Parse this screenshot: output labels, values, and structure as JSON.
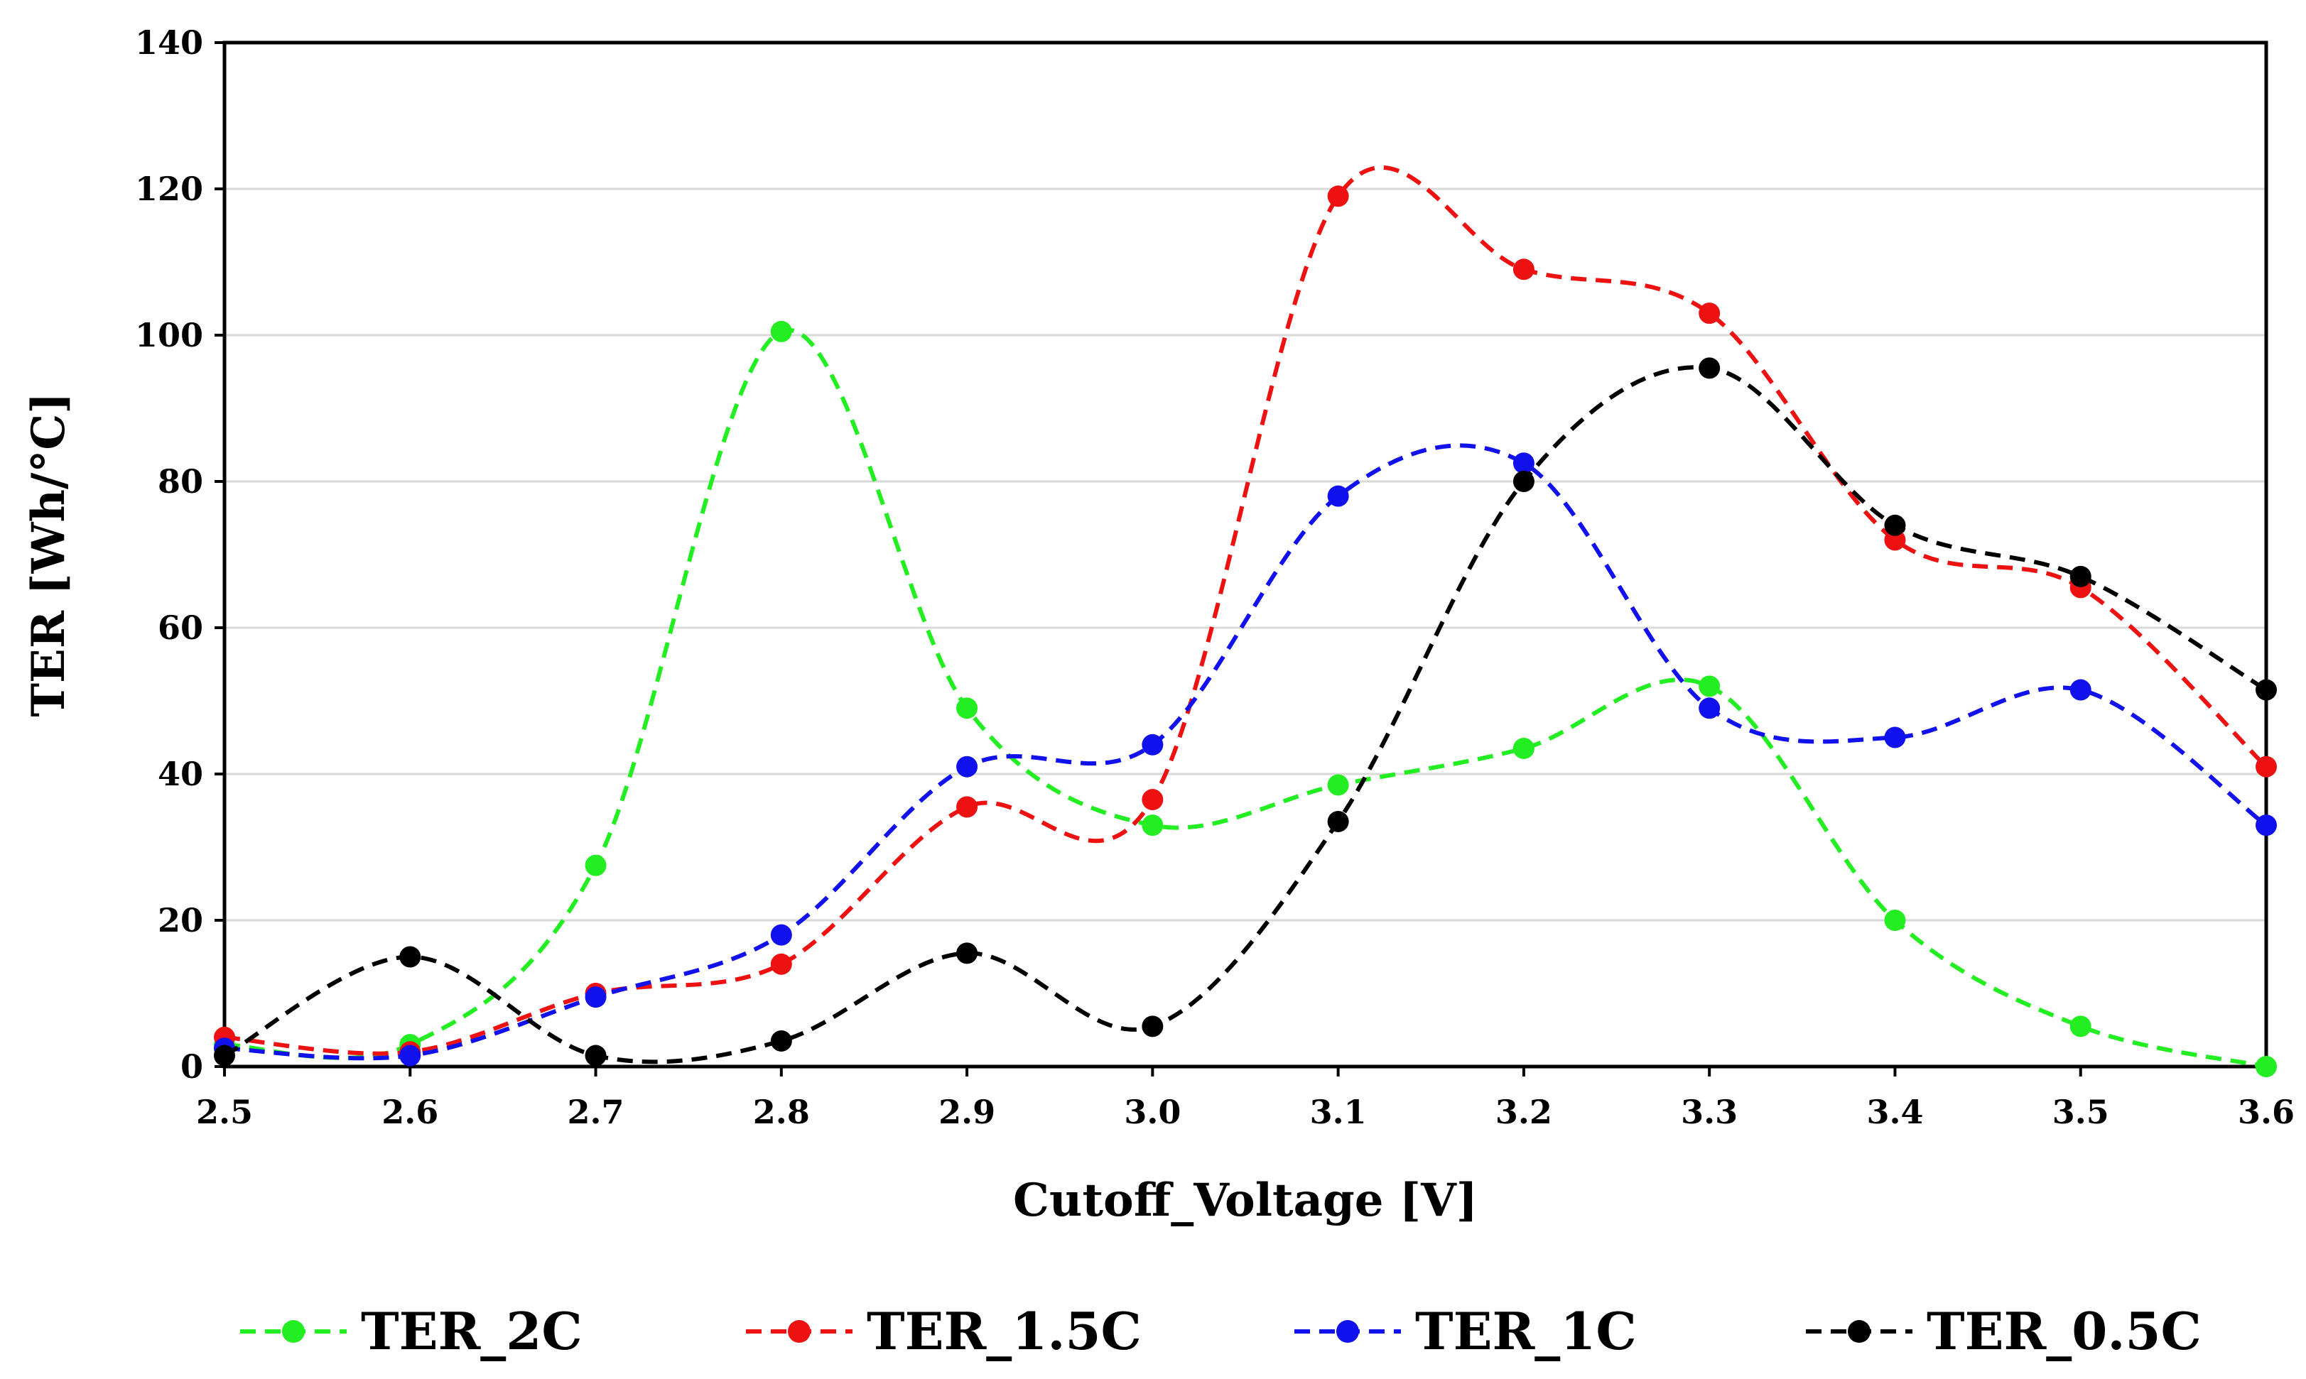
{
  "chart_data": {
    "type": "line",
    "title": "",
    "xlabel": "Cutoff_Voltage [V]",
    "ylabel": "TER [Wh/°C]",
    "xlim": [
      2.5,
      3.6
    ],
    "ylim": [
      0,
      140
    ],
    "x_ticks": [
      "2.5",
      "2.6",
      "2.7",
      "2.8",
      "2.9",
      "3.0",
      "3.1",
      "3.2",
      "3.3",
      "3.4",
      "3.5",
      "3.6"
    ],
    "y_ticks": [
      "0",
      "20",
      "40",
      "60",
      "80",
      "100",
      "120",
      "140"
    ],
    "grid": "horizontal",
    "legend_position": "bottom",
    "x": [
      2.5,
      2.6,
      2.7,
      2.8,
      2.9,
      3.0,
      3.1,
      3.2,
      3.3,
      3.4,
      3.5,
      3.6
    ],
    "series": [
      {
        "name": "TER_2C",
        "color": "#22ee22",
        "values": [
          3,
          3,
          27.5,
          100.5,
          49,
          33,
          38.5,
          43.5,
          52,
          20,
          5.5,
          0
        ]
      },
      {
        "name": "TER_1.5C",
        "color": "#ee1111",
        "values": [
          4,
          2,
          10,
          14,
          35.5,
          36.5,
          119,
          109,
          103,
          72,
          65.5,
          41
        ]
      },
      {
        "name": "TER_1C",
        "color": "#1111ee",
        "values": [
          2.5,
          1.5,
          9.5,
          18,
          41,
          44,
          78,
          82.5,
          49,
          45,
          51.5,
          33
        ]
      },
      {
        "name": "TER_0.5C",
        "color": "#000000",
        "values": [
          1.5,
          15,
          1.5,
          3.5,
          15.5,
          5.5,
          33.5,
          80,
          95.5,
          74,
          67,
          51.5
        ]
      }
    ]
  }
}
